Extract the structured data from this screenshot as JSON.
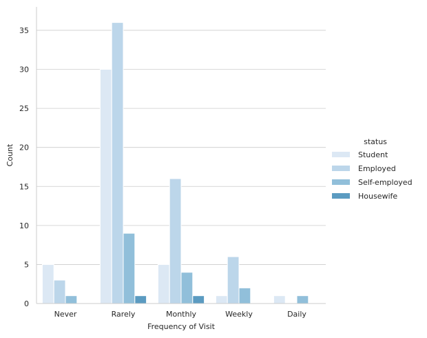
{
  "chart_data": {
    "type": "bar",
    "title": "",
    "xlabel": "Frequency of Visit",
    "ylabel": "Count",
    "categories": [
      "Never",
      "Rarely",
      "Monthly",
      "Weekly",
      "Daily"
    ],
    "ylim": [
      0,
      38
    ],
    "yticks": [
      0,
      5,
      10,
      15,
      20,
      25,
      30,
      35
    ],
    "grid": "horizontal",
    "legend": {
      "title": "status",
      "placement": "right"
    },
    "series": [
      {
        "name": "Student",
        "color": "#dce8f4",
        "values": [
          5,
          30,
          5,
          1,
          1
        ]
      },
      {
        "name": "Employed",
        "color": "#bcd6ea",
        "values": [
          3,
          36,
          16,
          6,
          0
        ]
      },
      {
        "name": "Self-employed",
        "color": "#91bfda",
        "values": [
          1,
          9,
          4,
          2,
          1
        ]
      },
      {
        "name": "Housewife",
        "color": "#5b9bc1",
        "values": [
          0,
          1,
          1,
          0,
          0
        ]
      }
    ]
  }
}
